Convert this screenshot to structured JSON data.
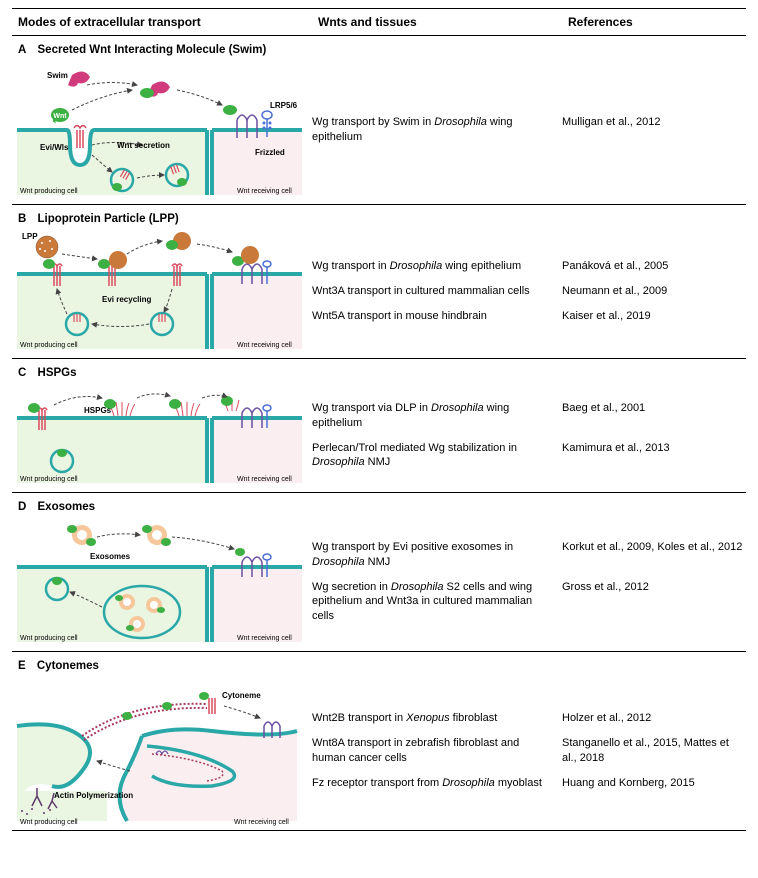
{
  "header": {
    "col1": "Modes of extracellular transport",
    "col2": "Wnts and tissues",
    "col3": "References"
  },
  "colors": {
    "producing_cell_fill": "#eaf5e2",
    "receiving_cell_fill": "#fbeef0",
    "membrane_stroke": "#2aa8a8",
    "membrane_stroke2": "#3bb8b8",
    "wnt_green": "#3cb043",
    "wnt_dark": "#1e7a2e",
    "evi_red": "#d94b5e",
    "swim_pink": "#d13b7b",
    "frizzled_purple": "#6b4fa0",
    "lrp_blue": "#4a6fd4",
    "exosome_outer": "#f5c79a",
    "exosome_inner": "#ffffff",
    "cytoneme_red": "#a83a5e",
    "actin_purple": "#5e3a6b",
    "label_arrow": "#444444"
  },
  "panels": [
    {
      "letter": "A",
      "title": "Secreted Wnt Interacting Molecule (Swim)",
      "height": 155,
      "labels": {
        "swim": "Swim",
        "wnt": "Wnt",
        "evi": "Evi/Wls",
        "secretion": "Wnt secretion",
        "lrp": "LRP5/6",
        "frizzled": "Frizzled",
        "prod": "Wnt producing cell",
        "recv": "Wnt receiving cell"
      },
      "rows": [
        {
          "wnts_html": "Wg transport by Swim in <span class='italic'>Drosophila</span> wing epithelium",
          "refs": "Mulligan et al., 2012"
        }
      ]
    },
    {
      "letter": "B",
      "title": "Lipoprotein Particle (LPP)",
      "height": 140,
      "labels": {
        "lpp": "LPP",
        "recycling": "Evi recycling",
        "prod": "Wnt producing cell",
        "recv": "Wnt receiving cell"
      },
      "rows": [
        {
          "wnts_html": "Wg transport in <span class='italic'>Drosophila</span> wing epithelium",
          "refs": "Panáková et al., 2005"
        },
        {
          "wnts_html": "Wnt3A transport in cultured mammalian cells",
          "refs": "Neumann et al., 2009"
        },
        {
          "wnts_html": "Wnt5A transport in mouse hindbrain",
          "refs": "Kaiser et al., 2019"
        }
      ]
    },
    {
      "letter": "C",
      "title": "HSPGs",
      "height": 125,
      "labels": {
        "hspgs": "HSPGs",
        "prod": "Wnt producing cell",
        "recv": "Wnt receiving cell"
      },
      "rows": [
        {
          "wnts_html": "Wg transport via DLP in <span class='italic'>Drosophila</span> wing epithelium",
          "refs": "Baeg et al., 2001"
        },
        {
          "wnts_html": "Perlecan/Trol mediated Wg stabilization in <span class='italic'>Drosophila</span> NMJ",
          "refs": "Kamimura et al., 2013"
        }
      ]
    },
    {
      "letter": "D",
      "title": "Exosomes",
      "height": 145,
      "labels": {
        "exosomes": "Exosomes",
        "prod": "Wnt producing cell",
        "recv": "Wnt receiving cell"
      },
      "rows": [
        {
          "wnts_html": "Wg transport by Evi positive exosomes in <span class='italic'>Drosophila</span> NMJ",
          "refs": "Korkut et al., 2009, Koles et al., 2012"
        },
        {
          "wnts_html": "Wg secretion in <span class='italic'>Drosophila</span> S2 cells and wing epithelium and Wnt3a in cultured mammalian cells",
          "refs": "Gross et al., 2012"
        }
      ]
    },
    {
      "letter": "E",
      "title": "Cytonemes",
      "height": 165,
      "labels": {
        "cytoneme": "Cytoneme",
        "actin": "Actin Polymerization",
        "prod": "Wnt producing cell",
        "recv": "Wnt receiving cell"
      },
      "rows": [
        {
          "wnts_html": "Wnt2B transport in <span class='italic'>Xenopus</span> fibroblast",
          "refs": "Holzer et al., 2012"
        },
        {
          "wnts_html": "Wnt8A transport in zebrafish fibroblast and human cancer cells",
          "refs": "Stanganello et al., 2015, Mattes et al., 2018"
        },
        {
          "wnts_html": "Fz receptor transport from <span class='italic'>Drosophila</span> myoblast",
          "refs": "Huang and Kornberg, 2015"
        }
      ]
    }
  ]
}
